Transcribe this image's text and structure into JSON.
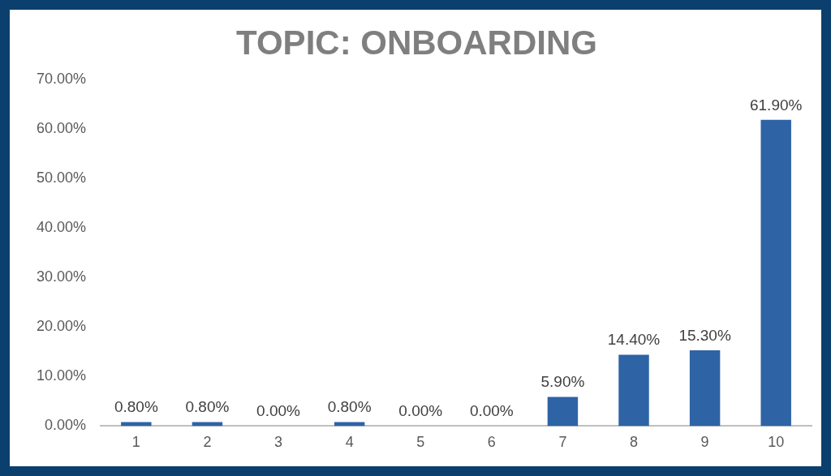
{
  "chart_data": {
    "type": "bar",
    "title": "TOPIC: ONBOARDING",
    "categories": [
      "1",
      "2",
      "3",
      "4",
      "5",
      "6",
      "7",
      "8",
      "9",
      "10"
    ],
    "values": [
      0.8,
      0.8,
      0,
      0.8,
      0,
      0,
      5.9,
      14.4,
      15.3,
      61.9
    ],
    "value_labels": [
      "0.80%",
      "0.80%",
      "0.00%",
      "0.80%",
      "0.00%",
      "0.00%",
      "5.90%",
      "14.40%",
      "15.30%",
      "61.90%"
    ],
    "color": "#2e63a6",
    "ylim": [
      0,
      70
    ],
    "yticks": [
      {
        "value": 0,
        "label": "0.00%"
      },
      {
        "value": 10,
        "label": "10.00%"
      },
      {
        "value": 20,
        "label": "20.00%"
      },
      {
        "value": 30,
        "label": "30.00%"
      },
      {
        "value": 40,
        "label": "40.00%"
      },
      {
        "value": 50,
        "label": "50.00%"
      },
      {
        "value": 60,
        "label": "60.00%"
      },
      {
        "value": 70,
        "label": "70.00%"
      }
    ],
    "grid": false,
    "legend": false
  }
}
